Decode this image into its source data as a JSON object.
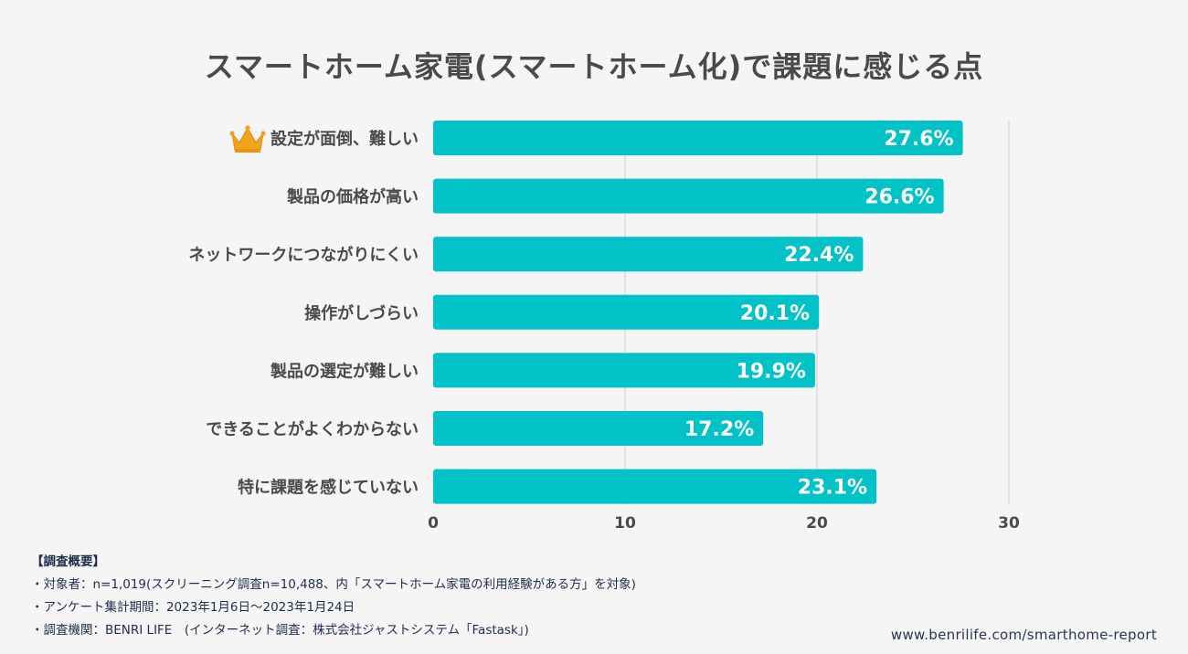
{
  "title": "スマートホーム家電(スマートホーム化)で課題に感じる点",
  "chart_data": {
    "type": "bar",
    "orientation": "horizontal",
    "categories": [
      "設定が面倒、難しい",
      "製品の価格が高い",
      "ネットワークにつながりにくい",
      "操作がしづらい",
      "製品の選定が難しい",
      "できることがよくわからない",
      "特に課題を感じていない"
    ],
    "values": [
      27.6,
      26.6,
      22.4,
      20.1,
      19.9,
      17.2,
      23.1
    ],
    "value_labels": [
      "27.6%",
      "26.6%",
      "22.4%",
      "20.1%",
      "19.9%",
      "17.2%",
      "23.1%"
    ],
    "xlim": [
      0,
      30
    ],
    "xticks": [
      "0",
      "10",
      "20",
      "30"
    ],
    "grid": true,
    "bar_color": "#00c2c7",
    "crown_on_first": true
  },
  "notes": {
    "heading": "【調査概要】",
    "lines": [
      "・対象者：n=1,019(スクリーニング調査n=10,488、内「スマートホーム家電の利用経験がある方」を対象)",
      "・アンケート集計期間：2023年1月6日〜2023年1月24日",
      "・調査機関：BENRI LIFE　(インターネット調査：株式会社ジャストシステム「Fastask」)"
    ]
  },
  "url": "www.benrilife.com/smarthome-report",
  "colors": {
    "title": "#4a4a4a",
    "label": "#4a4a4a",
    "grid": "#cfcfcf",
    "crown": "#f2a31b",
    "bar": "#00c2c7"
  },
  "icons": {
    "crown": "crown-icon"
  }
}
